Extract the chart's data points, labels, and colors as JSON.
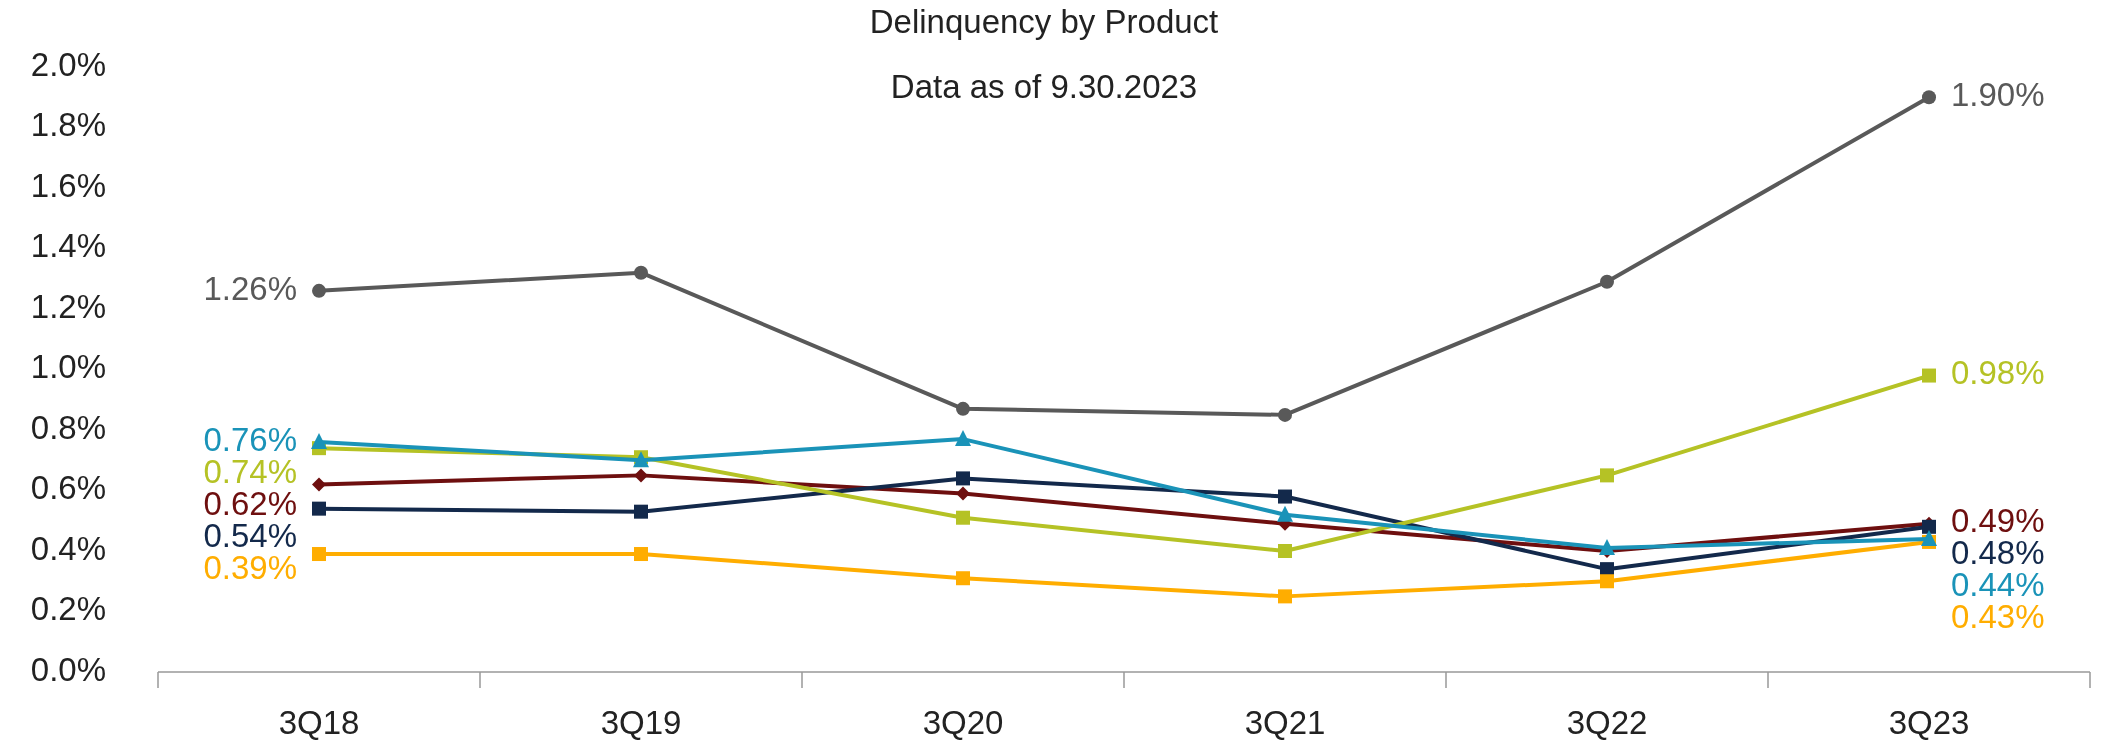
{
  "chart_data": {
    "type": "line",
    "title": "Delinquency by Product",
    "subtitle": "Data as of 9.30.2023",
    "categories": [
      "3Q18",
      "3Q19",
      "3Q20",
      "3Q21",
      "3Q22",
      "3Q23"
    ],
    "ylim": [
      0,
      2.0
    ],
    "yticks": [
      {
        "value": 0,
        "label": "0.0%"
      },
      {
        "value": 0.2,
        "label": "0.2%"
      },
      {
        "value": 0.4,
        "label": "0.4%"
      },
      {
        "value": 0.6,
        "label": "0.6%"
      },
      {
        "value": 0.8,
        "label": "0.8%"
      },
      {
        "value": 1.0,
        "label": "1.0%"
      },
      {
        "value": 1.2,
        "label": "1.2%"
      },
      {
        "value": 1.4,
        "label": "1.4%"
      },
      {
        "value": 1.6,
        "label": "1.6%"
      },
      {
        "value": 1.8,
        "label": "1.8%"
      },
      {
        "value": 2.0,
        "label": "2.0%"
      }
    ],
    "grid": false,
    "series": [
      {
        "color": "#595959",
        "marker": "circle",
        "values": [
          1.26,
          1.32,
          0.87,
          0.85,
          1.29,
          1.9
        ],
        "value_labels": [
          "1.26%",
          null,
          null,
          null,
          null,
          "1.90%"
        ]
      },
      {
        "color": "#6e0f0f",
        "marker": "diamond",
        "values": [
          0.62,
          0.65,
          0.59,
          0.49,
          0.4,
          0.49
        ],
        "value_labels": [
          "0.62%",
          null,
          null,
          null,
          null,
          "0.49%"
        ]
      },
      {
        "color": "#13294b",
        "marker": "square",
        "values": [
          0.54,
          0.53,
          0.64,
          0.58,
          0.34,
          0.48
        ],
        "value_labels": [
          "0.54%",
          null,
          null,
          null,
          null,
          "0.48%"
        ]
      },
      {
        "color": "#ffad00",
        "marker": "square",
        "values": [
          0.39,
          0.39,
          0.31,
          0.25,
          0.3,
          0.43
        ],
        "value_labels": [
          "0.39%",
          null,
          null,
          null,
          null,
          "0.43%"
        ]
      },
      {
        "color": "#b5c225",
        "marker": "square",
        "values": [
          0.74,
          0.71,
          0.51,
          0.4,
          0.65,
          0.98
        ],
        "value_labels": [
          "0.74%",
          null,
          null,
          null,
          null,
          "0.98%"
        ]
      },
      {
        "color": "#1a93b8",
        "marker": "triangle",
        "values": [
          0.76,
          0.7,
          0.77,
          0.52,
          0.41,
          0.44
        ],
        "value_labels": [
          "0.76%",
          null,
          null,
          null,
          null,
          "0.44%"
        ]
      }
    ]
  }
}
